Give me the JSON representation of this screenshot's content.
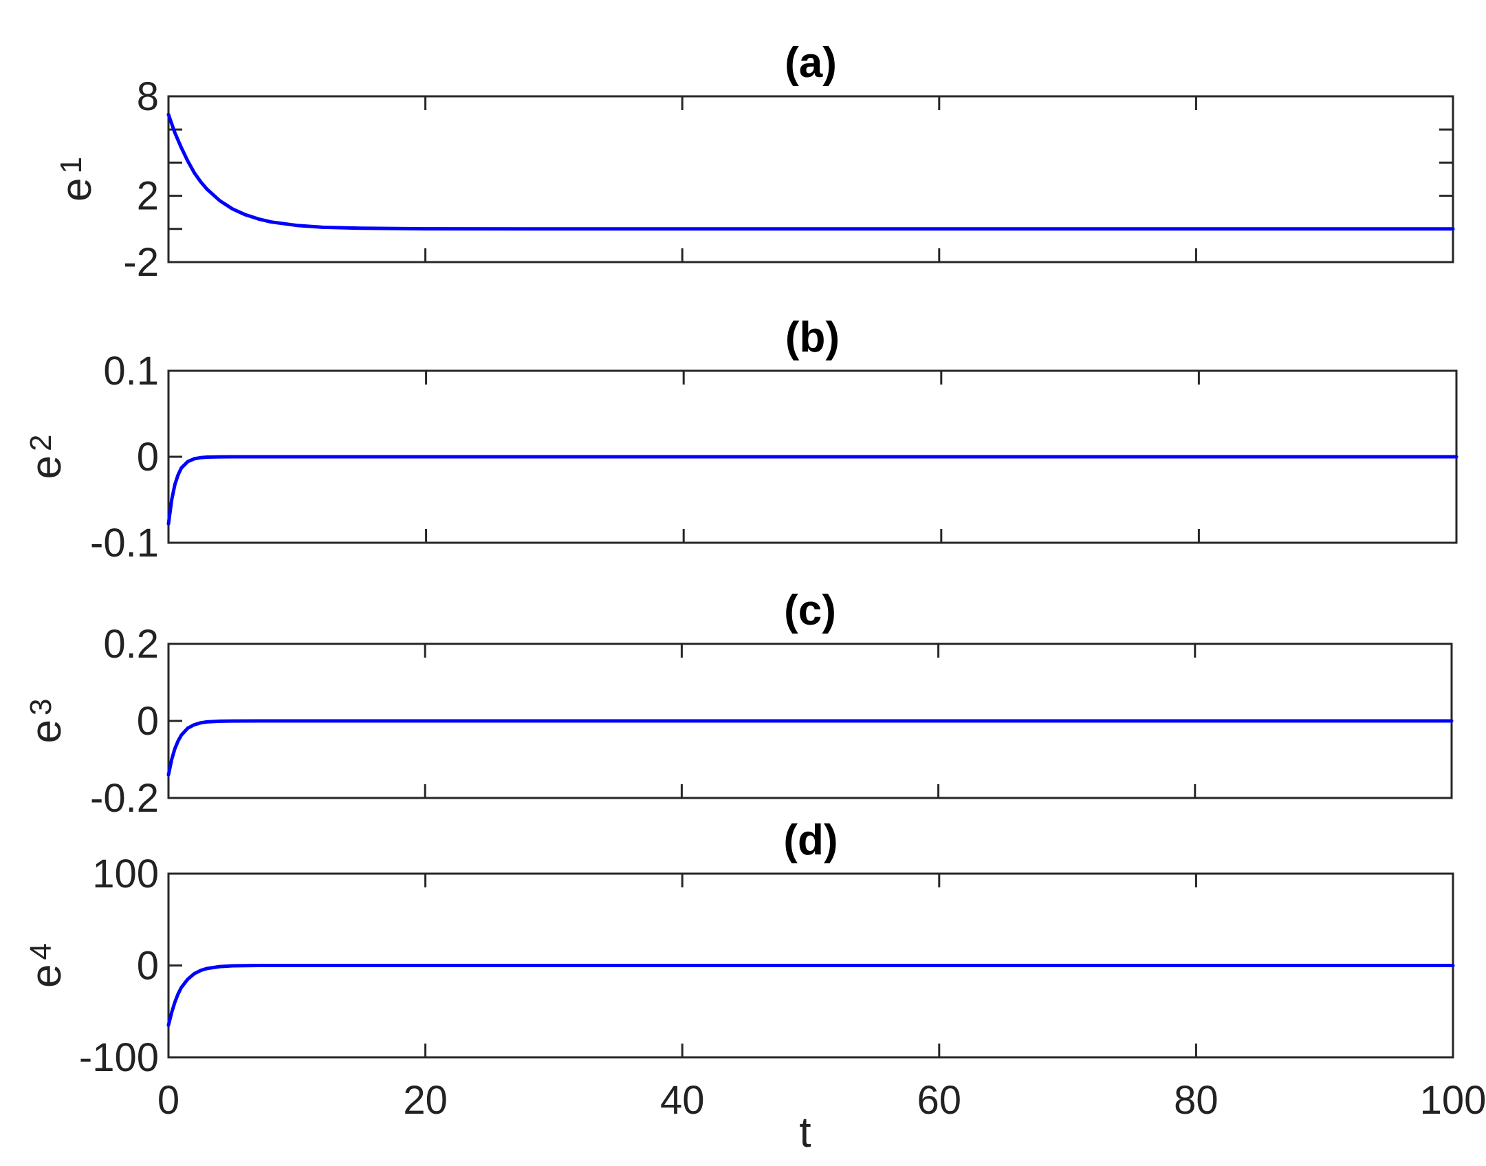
{
  "chart_data": [
    {
      "type": "line",
      "title": "(a)",
      "ylabel": {
        "base": "e",
        "sub": "1"
      },
      "xlim": [
        0,
        100
      ],
      "ylim": [
        -2,
        8
      ],
      "yticks": [
        -2,
        0,
        2,
        4,
        6,
        8
      ],
      "ytick_labels": [
        "-2",
        "",
        "2",
        "",
        "",
        "8"
      ],
      "show_xtick_labels": false,
      "grid": false,
      "series": [
        {
          "color": "#0000ff",
          "x": [
            0,
            0.5,
            1,
            1.5,
            2,
            2.5,
            3,
            4,
            5,
            6,
            7,
            8,
            10,
            12,
            15,
            20,
            30,
            40,
            50,
            60,
            70,
            80,
            90,
            100
          ],
          "y": [
            6.9,
            5.8,
            4.9,
            4.1,
            3.4,
            2.85,
            2.4,
            1.7,
            1.2,
            0.85,
            0.6,
            0.42,
            0.21,
            0.1,
            0.04,
            0.01,
            0,
            0,
            0,
            0,
            0,
            0,
            0,
            0
          ]
        }
      ]
    },
    {
      "type": "line",
      "title": "(b)",
      "ylabel": {
        "base": "e",
        "sub": "2"
      },
      "xlim": [
        0,
        100
      ],
      "ylim": [
        -0.1,
        0.1
      ],
      "yticks": [
        -0.1,
        0,
        0.1
      ],
      "ytick_labels": [
        "-0.1",
        "0",
        "0.1"
      ],
      "show_xtick_labels": false,
      "grid": false,
      "series": [
        {
          "color": "#0000ff",
          "x": [
            0,
            0.25,
            0.5,
            0.75,
            1,
            1.5,
            2,
            2.5,
            3,
            4,
            5,
            7,
            10,
            20,
            40,
            60,
            80,
            100
          ],
          "y": [
            -0.078,
            -0.05,
            -0.032,
            -0.021,
            -0.013,
            -0.0056,
            -0.0023,
            -0.001,
            -0.0004,
            -0.0001,
            0,
            0,
            0,
            0,
            0,
            0,
            0,
            0
          ]
        }
      ]
    },
    {
      "type": "line",
      "title": "(c)",
      "ylabel": {
        "base": "e",
        "sub": "3"
      },
      "xlim": [
        0,
        100
      ],
      "ylim": [
        -0.2,
        0.2
      ],
      "yticks": [
        -0.2,
        0,
        0.2
      ],
      "ytick_labels": [
        "-0.2",
        "0",
        "0.2"
      ],
      "show_xtick_labels": false,
      "grid": false,
      "series": [
        {
          "color": "#0000ff",
          "x": [
            0,
            0.25,
            0.5,
            0.75,
            1,
            1.5,
            2,
            2.5,
            3,
            4,
            5,
            7,
            10,
            20,
            40,
            60,
            80,
            100
          ],
          "y": [
            -0.14,
            -0.1,
            -0.072,
            -0.052,
            -0.037,
            -0.019,
            -0.01,
            -0.005,
            -0.0025,
            -0.0007,
            -0.0002,
            0,
            0,
            0,
            0,
            0,
            0,
            0
          ]
        }
      ]
    },
    {
      "type": "line",
      "title": "(d)",
      "ylabel": {
        "base": "e",
        "sub": "4"
      },
      "xlabel": "t",
      "xlim": [
        0,
        100
      ],
      "ylim": [
        -100,
        100
      ],
      "yticks": [
        -100,
        0,
        100
      ],
      "ytick_labels": [
        "-100",
        "0",
        "100"
      ],
      "xticks": [
        0,
        20,
        40,
        60,
        80,
        100
      ],
      "xtick_labels": [
        "0",
        "20",
        "40",
        "60",
        "80",
        "100"
      ],
      "show_xtick_labels": true,
      "grid": false,
      "series": [
        {
          "color": "#0000ff",
          "x": [
            0,
            0.25,
            0.5,
            0.75,
            1,
            1.5,
            2,
            2.5,
            3,
            4,
            5,
            6,
            7,
            10,
            20,
            40,
            60,
            80,
            100
          ],
          "y": [
            -65,
            -51,
            -40,
            -31,
            -24,
            -15,
            -9,
            -5.5,
            -3.3,
            -1.2,
            -0.4,
            -0.15,
            0,
            0,
            0,
            0,
            0,
            0,
            0
          ]
        }
      ]
    }
  ]
}
